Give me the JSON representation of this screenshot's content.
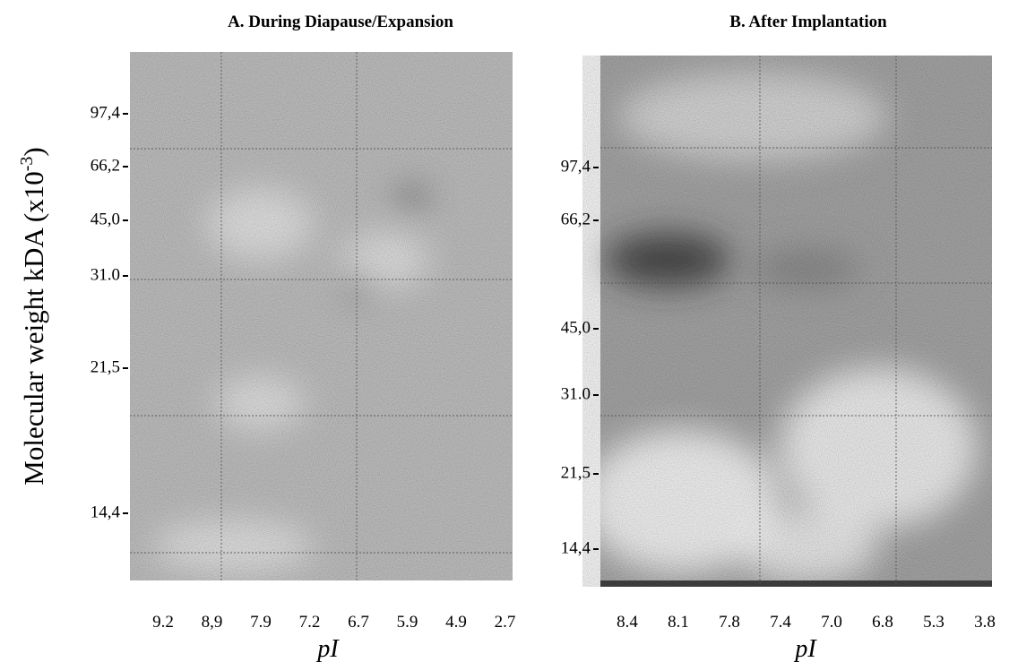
{
  "y_axis_label": {
    "text": "Molecular weight kDA (x10",
    "superscript": "-3",
    "close": ")"
  },
  "panels": [
    {
      "title": "A. During Diapause/Expansion",
      "y_ticks": [
        "97,4",
        "66,2",
        "45,0",
        "31.0",
        "21,5",
        "14,4"
      ],
      "x_ticks": [
        "9.2",
        "8,9",
        "7.9",
        "7.2",
        "6.7",
        "5.9",
        "4.9",
        "2.7"
      ],
      "x_axis_label": "pI"
    },
    {
      "title": "B. After Implantation",
      "y_ticks": [
        "97,4",
        "66,2",
        "45,0",
        "31.0",
        "21,5",
        "14,4"
      ],
      "x_ticks": [
        "8.4",
        "8.1",
        "7.8",
        "7.4",
        "7.0",
        "6.8",
        "5.3",
        "3.8"
      ],
      "x_axis_label": "pI"
    }
  ]
}
